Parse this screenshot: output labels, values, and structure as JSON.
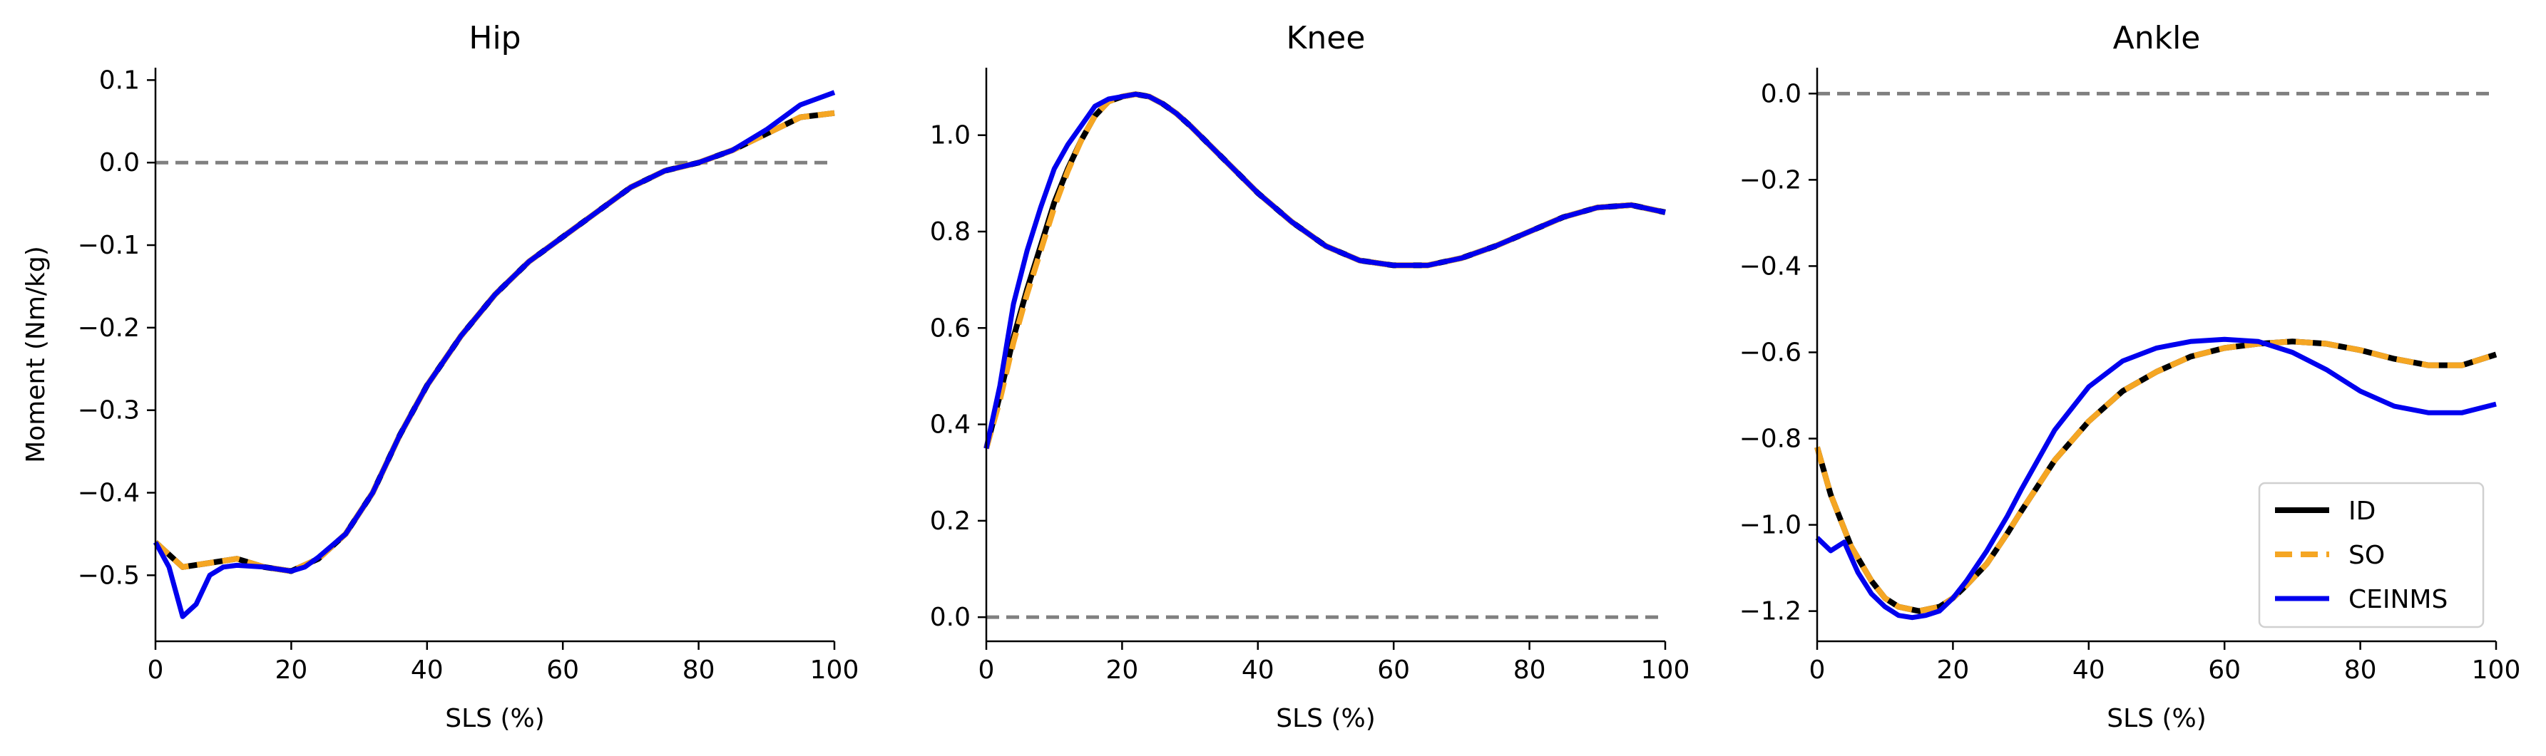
{
  "colors": {
    "id": "#000000",
    "so": "#f5a623",
    "ceinms": "#0000ee",
    "zero_line": "#808080"
  },
  "legend": [
    {
      "name": "ID",
      "color": "#000000",
      "dash": "solid"
    },
    {
      "name": "SO",
      "color": "#f5a623",
      "dash": "dashed"
    },
    {
      "name": "CEINMS",
      "color": "#0000ee",
      "dash": "solid"
    }
  ],
  "chart_data": [
    {
      "type": "line",
      "title": "Hip",
      "xlabel": "SLS (%)",
      "ylabel": "Moment (Nm/kg)",
      "xlim": [
        0,
        100
      ],
      "ylim": [
        -0.58,
        0.115
      ],
      "xticks": [
        0,
        20,
        40,
        60,
        80,
        100
      ],
      "yticks": [
        -0.5,
        -0.4,
        -0.3,
        -0.2,
        -0.1,
        0.0,
        0.1
      ],
      "ytick_labels": [
        "−0.5",
        "−0.4",
        "−0.3",
        "−0.2",
        "−0.1",
        "0.0",
        "0.1"
      ],
      "zero_line": 0,
      "series": [
        {
          "name": "ID",
          "x": [
            0,
            4,
            8,
            12,
            16,
            20,
            24,
            28,
            32,
            36,
            40,
            45,
            50,
            55,
            60,
            65,
            70,
            75,
            80,
            85,
            90,
            95,
            100
          ],
          "y": [
            -0.46,
            -0.49,
            -0.485,
            -0.48,
            -0.49,
            -0.495,
            -0.48,
            -0.45,
            -0.4,
            -0.33,
            -0.27,
            -0.21,
            -0.16,
            -0.12,
            -0.09,
            -0.06,
            -0.03,
            -0.01,
            0.0,
            0.015,
            0.035,
            0.055,
            0.06
          ]
        },
        {
          "name": "SO",
          "x": [
            0,
            4,
            8,
            12,
            16,
            20,
            24,
            28,
            32,
            36,
            40,
            45,
            50,
            55,
            60,
            65,
            70,
            75,
            80,
            85,
            90,
            95,
            100
          ],
          "y": [
            -0.46,
            -0.49,
            -0.485,
            -0.48,
            -0.49,
            -0.495,
            -0.48,
            -0.45,
            -0.4,
            -0.33,
            -0.27,
            -0.21,
            -0.16,
            -0.12,
            -0.09,
            -0.06,
            -0.03,
            -0.01,
            0.0,
            0.015,
            0.035,
            0.055,
            0.06
          ]
        },
        {
          "name": "CEINMS",
          "x": [
            0,
            2,
            4,
            6,
            8,
            10,
            12,
            16,
            20,
            22,
            24,
            28,
            32,
            36,
            40,
            45,
            50,
            55,
            60,
            65,
            70,
            75,
            80,
            85,
            90,
            95,
            100
          ],
          "y": [
            -0.46,
            -0.49,
            -0.55,
            -0.535,
            -0.5,
            -0.49,
            -0.488,
            -0.49,
            -0.495,
            -0.49,
            -0.478,
            -0.45,
            -0.4,
            -0.33,
            -0.27,
            -0.21,
            -0.16,
            -0.12,
            -0.09,
            -0.06,
            -0.03,
            -0.01,
            0.0,
            0.015,
            0.04,
            0.07,
            0.085
          ]
        }
      ]
    },
    {
      "type": "line",
      "title": "Knee",
      "xlabel": "SLS (%)",
      "ylabel": "",
      "xlim": [
        0,
        100
      ],
      "ylim": [
        -0.05,
        1.14
      ],
      "xticks": [
        0,
        20,
        40,
        60,
        80,
        100
      ],
      "yticks": [
        0.0,
        0.2,
        0.4,
        0.6,
        0.8,
        1.0
      ],
      "ytick_labels": [
        "0.0",
        "0.2",
        "0.4",
        "0.6",
        "0.8",
        "1.0"
      ],
      "zero_line": 0,
      "series": [
        {
          "name": "ID",
          "x": [
            0,
            2,
            4,
            6,
            8,
            10,
            12,
            14,
            16,
            18,
            20,
            22,
            24,
            26,
            28,
            30,
            35,
            40,
            45,
            50,
            55,
            60,
            65,
            70,
            75,
            80,
            85,
            90,
            95,
            100
          ],
          "y": [
            0.35,
            0.46,
            0.58,
            0.68,
            0.77,
            0.86,
            0.93,
            0.99,
            1.04,
            1.07,
            1.08,
            1.085,
            1.08,
            1.065,
            1.045,
            1.02,
            0.95,
            0.88,
            0.82,
            0.77,
            0.74,
            0.73,
            0.73,
            0.745,
            0.77,
            0.8,
            0.83,
            0.85,
            0.855,
            0.84
          ]
        },
        {
          "name": "SO",
          "x": [
            0,
            2,
            4,
            6,
            8,
            10,
            12,
            14,
            16,
            18,
            20,
            22,
            24,
            26,
            28,
            30,
            35,
            40,
            45,
            50,
            55,
            60,
            65,
            70,
            75,
            80,
            85,
            90,
            95,
            100
          ],
          "y": [
            0.35,
            0.45,
            0.57,
            0.67,
            0.76,
            0.85,
            0.925,
            0.99,
            1.04,
            1.07,
            1.08,
            1.085,
            1.08,
            1.065,
            1.045,
            1.02,
            0.95,
            0.88,
            0.82,
            0.77,
            0.74,
            0.73,
            0.73,
            0.745,
            0.77,
            0.8,
            0.83,
            0.85,
            0.855,
            0.84
          ]
        },
        {
          "name": "CEINMS",
          "x": [
            0,
            2,
            4,
            6,
            8,
            10,
            12,
            14,
            16,
            18,
            20,
            22,
            24,
            26,
            28,
            30,
            35,
            40,
            45,
            50,
            55,
            60,
            65,
            70,
            75,
            80,
            85,
            90,
            95,
            100
          ],
          "y": [
            0.35,
            0.48,
            0.65,
            0.76,
            0.85,
            0.93,
            0.98,
            1.02,
            1.06,
            1.075,
            1.08,
            1.085,
            1.08,
            1.065,
            1.045,
            1.02,
            0.95,
            0.88,
            0.82,
            0.77,
            0.74,
            0.73,
            0.73,
            0.745,
            0.77,
            0.8,
            0.83,
            0.85,
            0.855,
            0.84
          ]
        }
      ]
    },
    {
      "type": "line",
      "title": "Ankle",
      "xlabel": "SLS (%)",
      "ylabel": "",
      "xlim": [
        0,
        100
      ],
      "ylim": [
        -1.27,
        0.06
      ],
      "xticks": [
        0,
        20,
        40,
        60,
        80,
        100
      ],
      "yticks": [
        -1.2,
        -1.0,
        -0.8,
        -0.6,
        -0.4,
        -0.2,
        0.0
      ],
      "ytick_labels": [
        "−1.2",
        "−1.0",
        "−0.8",
        "−0.6",
        "−0.4",
        "−0.2",
        "0.0"
      ],
      "zero_line": 0,
      "legend_position": "lower-right",
      "series": [
        {
          "name": "ID",
          "x": [
            0,
            2,
            5,
            8,
            10,
            12,
            15,
            18,
            20,
            22,
            25,
            28,
            30,
            35,
            40,
            45,
            50,
            55,
            60,
            65,
            70,
            75,
            80,
            85,
            90,
            95,
            100
          ],
          "y": [
            -0.82,
            -0.93,
            -1.05,
            -1.13,
            -1.17,
            -1.19,
            -1.2,
            -1.19,
            -1.17,
            -1.14,
            -1.09,
            -1.02,
            -0.97,
            -0.85,
            -0.76,
            -0.69,
            -0.645,
            -0.61,
            -0.59,
            -0.58,
            -0.575,
            -0.58,
            -0.595,
            -0.615,
            -0.63,
            -0.63,
            -0.605
          ]
        },
        {
          "name": "SO",
          "x": [
            0,
            2,
            5,
            8,
            10,
            12,
            15,
            18,
            20,
            22,
            25,
            28,
            30,
            35,
            40,
            45,
            50,
            55,
            60,
            65,
            70,
            75,
            80,
            85,
            90,
            95,
            100
          ],
          "y": [
            -0.82,
            -0.93,
            -1.05,
            -1.13,
            -1.17,
            -1.19,
            -1.2,
            -1.19,
            -1.17,
            -1.14,
            -1.09,
            -1.02,
            -0.97,
            -0.85,
            -0.76,
            -0.69,
            -0.645,
            -0.61,
            -0.59,
            -0.58,
            -0.575,
            -0.58,
            -0.595,
            -0.615,
            -0.63,
            -0.63,
            -0.605
          ]
        },
        {
          "name": "CEINMS",
          "x": [
            0,
            2,
            4,
            6,
            8,
            10,
            12,
            14,
            16,
            18,
            20,
            22,
            25,
            28,
            30,
            35,
            40,
            45,
            50,
            55,
            60,
            65,
            70,
            75,
            80,
            85,
            90,
            95,
            100
          ],
          "y": [
            -1.03,
            -1.06,
            -1.04,
            -1.11,
            -1.16,
            -1.19,
            -1.21,
            -1.215,
            -1.21,
            -1.2,
            -1.17,
            -1.13,
            -1.06,
            -0.98,
            -0.92,
            -0.78,
            -0.68,
            -0.62,
            -0.59,
            -0.575,
            -0.57,
            -0.575,
            -0.6,
            -0.64,
            -0.69,
            -0.725,
            -0.74,
            -0.74,
            -0.72
          ]
        }
      ]
    }
  ]
}
